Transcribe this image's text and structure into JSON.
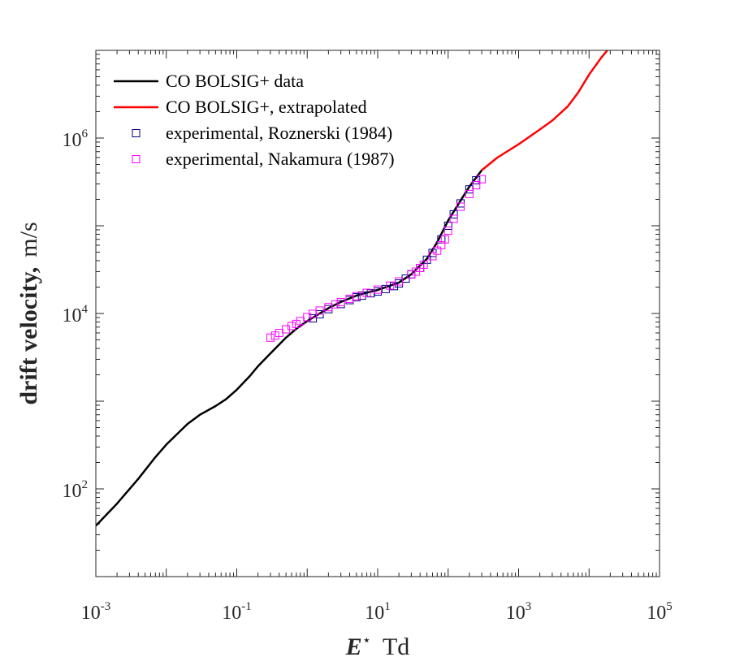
{
  "chart_data": {
    "type": "line",
    "x_scale": "log",
    "y_scale": "log",
    "xlim": [
      0.001,
      100000
    ],
    "ylim": [
      10,
      10000000
    ],
    "grid": false,
    "legend_position": "top-left",
    "xlabel": {
      "symbol": "E",
      "superscript": "⋆",
      "unit": "Td"
    },
    "ylabel": {
      "main": "drift velocity,",
      "unit": "m/s"
    },
    "x_ticks": [
      {
        "base": "10",
        "exp": "-3"
      },
      {
        "base": "10",
        "exp": "-1"
      },
      {
        "base": "10",
        "exp": "1"
      },
      {
        "base": "10",
        "exp": "3"
      },
      {
        "base": "10",
        "exp": "5"
      }
    ],
    "y_ticks": [
      {
        "base": "10",
        "exp": "2"
      },
      {
        "base": "10",
        "exp": "4"
      },
      {
        "base": "10",
        "exp": "6"
      }
    ],
    "series": [
      {
        "name": "CO BOLSIG+ data",
        "kind": "line",
        "color": "#000000",
        "x": [
          0.001,
          0.002,
          0.004,
          0.007,
          0.01,
          0.02,
          0.03,
          0.05,
          0.07,
          0.1,
          0.15,
          0.2,
          0.3,
          0.5,
          0.7,
          1,
          2,
          3,
          5,
          7,
          10,
          20,
          30,
          50,
          70,
          100,
          200,
          300
        ],
        "y": [
          38,
          68,
          130,
          230,
          320,
          550,
          700,
          880,
          1050,
          1350,
          1900,
          2500,
          3500,
          5300,
          6700,
          8200,
          11500,
          13500,
          16000,
          17300,
          18500,
          22500,
          28000,
          42000,
          65000,
          115000,
          280000,
          430000
        ]
      },
      {
        "name": "CO BOLSIG+, extrapolated",
        "kind": "line",
        "color": "#ff0000",
        "x": [
          300,
          500,
          1000,
          2000,
          3000,
          5000,
          7000,
          10000,
          15000,
          20000
        ],
        "y": [
          430000,
          600000,
          850000,
          1250000,
          1580000,
          2300000,
          3300000,
          5300000,
          8300000,
          11000000
        ]
      },
      {
        "name": "experimental, Roznerski (1984)",
        "kind": "scatter",
        "color": "#00007f",
        "x": [
          1.2,
          1.5,
          2,
          3,
          4,
          5,
          6,
          8,
          10,
          13,
          17,
          20,
          25,
          30,
          40,
          50,
          60,
          80,
          100,
          120,
          150,
          200,
          250
        ],
        "y": [
          8800,
          9800,
          11200,
          12800,
          14200,
          15300,
          16000,
          17000,
          17800,
          19000,
          20500,
          22000,
          25000,
          28000,
          33000,
          41000,
          49000,
          70000,
          100000,
          135000,
          180000,
          260000,
          330000
        ]
      },
      {
        "name": "experimental, Nakamura (1987)",
        "kind": "scatter",
        "color": "#ff00ff",
        "x": [
          0.3,
          0.35,
          0.4,
          0.5,
          0.6,
          0.7,
          0.8,
          1,
          1.2,
          1.5,
          2,
          2.5,
          3,
          4,
          5,
          7,
          10,
          15,
          20,
          30,
          35,
          40,
          45,
          60,
          70,
          80,
          90,
          100,
          120,
          150,
          200,
          250,
          300
        ],
        "y": [
          5300,
          5600,
          6000,
          6600,
          7200,
          7600,
          8200,
          9100,
          9900,
          10800,
          11800,
          12700,
          13500,
          14700,
          15800,
          17200,
          18700,
          20800,
          23200,
          27800,
          30000,
          33000,
          36000,
          45000,
          52000,
          60000,
          70000,
          88000,
          120000,
          165000,
          230000,
          290000,
          340000
        ]
      }
    ]
  }
}
